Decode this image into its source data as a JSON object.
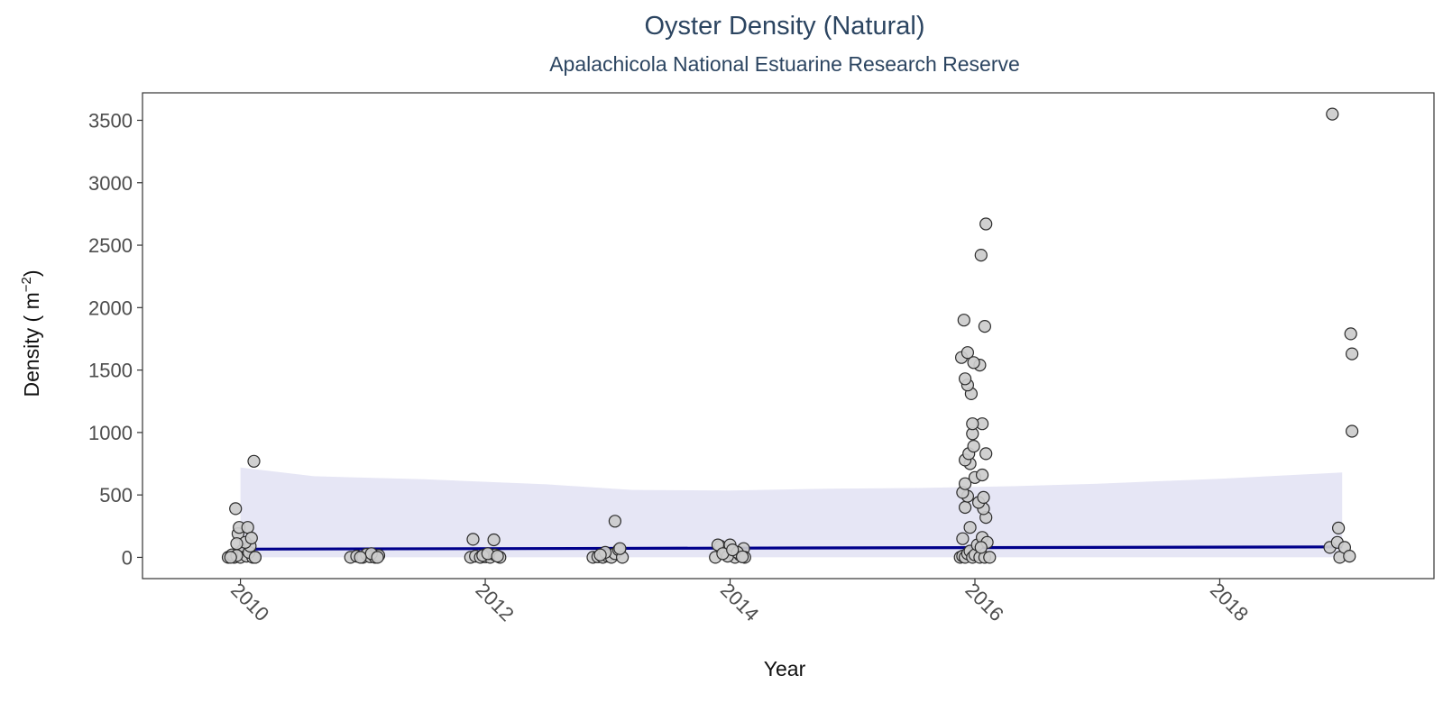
{
  "chart_data": {
    "type": "scatter",
    "title": "Oyster Density (Natural)",
    "subtitle": "Apalachicola National Estuarine Research Reserve",
    "xlabel": "Year",
    "ylabel": {
      "text": "Density ( m",
      "sup": "−2",
      "close": ")"
    },
    "xlim": [
      2009.2,
      2019.75
    ],
    "ylim": [
      -170,
      3720
    ],
    "xticks": [
      2010,
      2012,
      2014,
      2016,
      2018
    ],
    "yticks": [
      0,
      500,
      1000,
      1500,
      2000,
      2500,
      3000,
      3500
    ],
    "grid": false,
    "legend": "none",
    "colors": {
      "point_fill": "#cccccc",
      "point_stroke": "#2b2b2b",
      "trend": "#00008b",
      "ribbon": "#e6e6f5",
      "title": "#2c4561"
    },
    "trend_line": {
      "x": [
        2010.0,
        2019.0
      ],
      "y": [
        66,
        84
      ]
    },
    "confidence_band": {
      "x": [
        2010.0,
        2010.6,
        2011.5,
        2012.5,
        2013.2,
        2014.0,
        2014.8,
        2015.5,
        2016.3,
        2017.0,
        2018.0,
        2019.0
      ],
      "upper": [
        720,
        650,
        625,
        585,
        540,
        535,
        550,
        555,
        570,
        590,
        630,
        680
      ],
      "lower": [
        0,
        0,
        0,
        0,
        0,
        0,
        0,
        0,
        0,
        0,
        0,
        0
      ]
    },
    "points": [
      {
        "x": 2009.9,
        "y": 0
      },
      {
        "x": 2009.94,
        "y": 5
      },
      {
        "x": 2009.98,
        "y": 30
      },
      {
        "x": 2010.02,
        "y": 60
      },
      {
        "x": 2009.95,
        "y": 0
      },
      {
        "x": 2010.0,
        "y": 0
      },
      {
        "x": 2010.05,
        "y": 10
      },
      {
        "x": 2010.1,
        "y": 0
      },
      {
        "x": 2010.12,
        "y": 0
      },
      {
        "x": 2009.93,
        "y": 20
      },
      {
        "x": 2009.97,
        "y": 15
      },
      {
        "x": 2010.07,
        "y": 40
      },
      {
        "x": 2010.08,
        "y": 90
      },
      {
        "x": 2009.98,
        "y": 190
      },
      {
        "x": 2010.04,
        "y": 120
      },
      {
        "x": 2009.96,
        "y": 390
      },
      {
        "x": 2009.99,
        "y": 240
      },
      {
        "x": 2010.06,
        "y": 240
      },
      {
        "x": 2010.09,
        "y": 155
      },
      {
        "x": 2009.97,
        "y": 110
      },
      {
        "x": 2010.11,
        "y": 770
      },
      {
        "x": 2010.12,
        "y": 0
      },
      {
        "x": 2009.92,
        "y": 0
      },
      {
        "x": 2010.9,
        "y": 0
      },
      {
        "x": 2010.95,
        "y": 10
      },
      {
        "x": 2011.0,
        "y": 0
      },
      {
        "x": 2011.03,
        "y": 25
      },
      {
        "x": 2011.06,
        "y": 5
      },
      {
        "x": 2011.1,
        "y": 0
      },
      {
        "x": 2011.13,
        "y": 15
      },
      {
        "x": 2011.07,
        "y": 30
      },
      {
        "x": 2010.98,
        "y": 0
      },
      {
        "x": 2011.12,
        "y": 0
      },
      {
        "x": 2011.88,
        "y": 0
      },
      {
        "x": 2011.92,
        "y": 10
      },
      {
        "x": 2011.96,
        "y": 0
      },
      {
        "x": 2012.0,
        "y": 5
      },
      {
        "x": 2012.04,
        "y": 0
      },
      {
        "x": 2012.08,
        "y": 20
      },
      {
        "x": 2012.12,
        "y": 0
      },
      {
        "x": 2011.9,
        "y": 145
      },
      {
        "x": 2012.07,
        "y": 140
      },
      {
        "x": 2011.98,
        "y": 15
      },
      {
        "x": 2012.02,
        "y": 30
      },
      {
        "x": 2012.1,
        "y": 10
      },
      {
        "x": 2012.88,
        "y": 0
      },
      {
        "x": 2012.92,
        "y": 5
      },
      {
        "x": 2012.96,
        "y": 0
      },
      {
        "x": 2013.0,
        "y": 10
      },
      {
        "x": 2013.03,
        "y": 0
      },
      {
        "x": 2013.06,
        "y": 30
      },
      {
        "x": 2013.09,
        "y": 60
      },
      {
        "x": 2013.12,
        "y": 0
      },
      {
        "x": 2013.06,
        "y": 290
      },
      {
        "x": 2012.98,
        "y": 40
      },
      {
        "x": 2013.1,
        "y": 70
      },
      {
        "x": 2012.94,
        "y": 20
      },
      {
        "x": 2013.88,
        "y": 0
      },
      {
        "x": 2013.92,
        "y": 90
      },
      {
        "x": 2013.96,
        "y": 50
      },
      {
        "x": 2014.0,
        "y": 100
      },
      {
        "x": 2014.04,
        "y": 0
      },
      {
        "x": 2014.08,
        "y": 20
      },
      {
        "x": 2014.11,
        "y": 70
      },
      {
        "x": 2013.9,
        "y": 100
      },
      {
        "x": 2013.98,
        "y": 10
      },
      {
        "x": 2014.06,
        "y": 40
      },
      {
        "x": 2014.12,
        "y": 0
      },
      {
        "x": 2013.94,
        "y": 30
      },
      {
        "x": 2014.02,
        "y": 60
      },
      {
        "x": 2014.1,
        "y": 5
      },
      {
        "x": 2015.88,
        "y": 0
      },
      {
        "x": 2015.9,
        "y": 10
      },
      {
        "x": 2015.92,
        "y": 0
      },
      {
        "x": 2015.94,
        "y": 30
      },
      {
        "x": 2015.96,
        "y": 50
      },
      {
        "x": 2015.98,
        "y": 0
      },
      {
        "x": 2016.0,
        "y": 20
      },
      {
        "x": 2016.02,
        "y": 100
      },
      {
        "x": 2016.04,
        "y": 0
      },
      {
        "x": 2016.06,
        "y": 160
      },
      {
        "x": 2016.08,
        "y": 0
      },
      {
        "x": 2016.1,
        "y": 120
      },
      {
        "x": 2016.12,
        "y": 0
      },
      {
        "x": 2015.9,
        "y": 150
      },
      {
        "x": 2016.05,
        "y": 80
      },
      {
        "x": 2015.96,
        "y": 240
      },
      {
        "x": 2016.09,
        "y": 320
      },
      {
        "x": 2016.07,
        "y": 390
      },
      {
        "x": 2015.92,
        "y": 400
      },
      {
        "x": 2016.03,
        "y": 440
      },
      {
        "x": 2016.07,
        "y": 480
      },
      {
        "x": 2015.94,
        "y": 490
      },
      {
        "x": 2015.9,
        "y": 520
      },
      {
        "x": 2015.92,
        "y": 590
      },
      {
        "x": 2016.0,
        "y": 640
      },
      {
        "x": 2016.06,
        "y": 660
      },
      {
        "x": 2015.96,
        "y": 750
      },
      {
        "x": 2015.92,
        "y": 780
      },
      {
        "x": 2015.95,
        "y": 830
      },
      {
        "x": 2016.09,
        "y": 830
      },
      {
        "x": 2015.99,
        "y": 890
      },
      {
        "x": 2015.98,
        "y": 990
      },
      {
        "x": 2016.06,
        "y": 1070
      },
      {
        "x": 2015.98,
        "y": 1070
      },
      {
        "x": 2015.97,
        "y": 1310
      },
      {
        "x": 2015.94,
        "y": 1380
      },
      {
        "x": 2015.92,
        "y": 1430
      },
      {
        "x": 2016.04,
        "y": 1540
      },
      {
        "x": 2015.99,
        "y": 1560
      },
      {
        "x": 2015.89,
        "y": 1600
      },
      {
        "x": 2015.94,
        "y": 1640
      },
      {
        "x": 2016.08,
        "y": 1850
      },
      {
        "x": 2015.91,
        "y": 1900
      },
      {
        "x": 2016.05,
        "y": 2420
      },
      {
        "x": 2016.09,
        "y": 2670
      },
      {
        "x": 2018.9,
        "y": 80
      },
      {
        "x": 2018.96,
        "y": 120
      },
      {
        "x": 2018.98,
        "y": 0
      },
      {
        "x": 2019.02,
        "y": 80
      },
      {
        "x": 2019.06,
        "y": 10
      },
      {
        "x": 2018.97,
        "y": 235
      },
      {
        "x": 2019.08,
        "y": 1010
      },
      {
        "x": 2019.08,
        "y": 1630
      },
      {
        "x": 2019.07,
        "y": 1790
      },
      {
        "x": 2018.92,
        "y": 3550
      }
    ]
  }
}
